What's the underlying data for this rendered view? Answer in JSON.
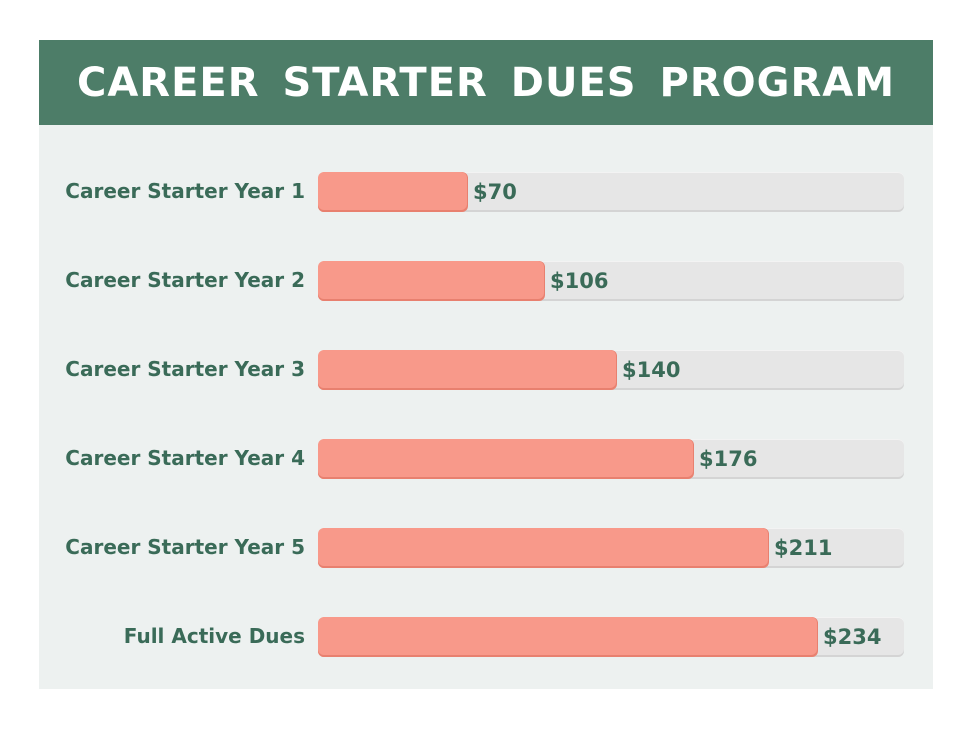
{
  "title": "CAREER STARTER DUES PROGRAM",
  "colors": {
    "header_bg": "#4d7d68",
    "panel_bg": "#edf1f0",
    "bar_fill": "#f8998a",
    "track": "#e6e6e6",
    "text": "#3a6b58"
  },
  "chart_data": {
    "type": "bar",
    "orientation": "horizontal",
    "title": "CAREER STARTER DUES PROGRAM",
    "categories": [
      "Career Starter Year 1",
      "Career Starter Year 2",
      "Career Starter Year 3",
      "Career Starter Year 4",
      "Career Starter Year 5",
      "Full Active Dues"
    ],
    "values": [
      70,
      106,
      140,
      176,
      211,
      234
    ],
    "value_labels": [
      "$70",
      "$106",
      "$140",
      "$176",
      "$211",
      "$234"
    ],
    "xlim": [
      0,
      275
    ],
    "grid": false,
    "legend": "none"
  }
}
